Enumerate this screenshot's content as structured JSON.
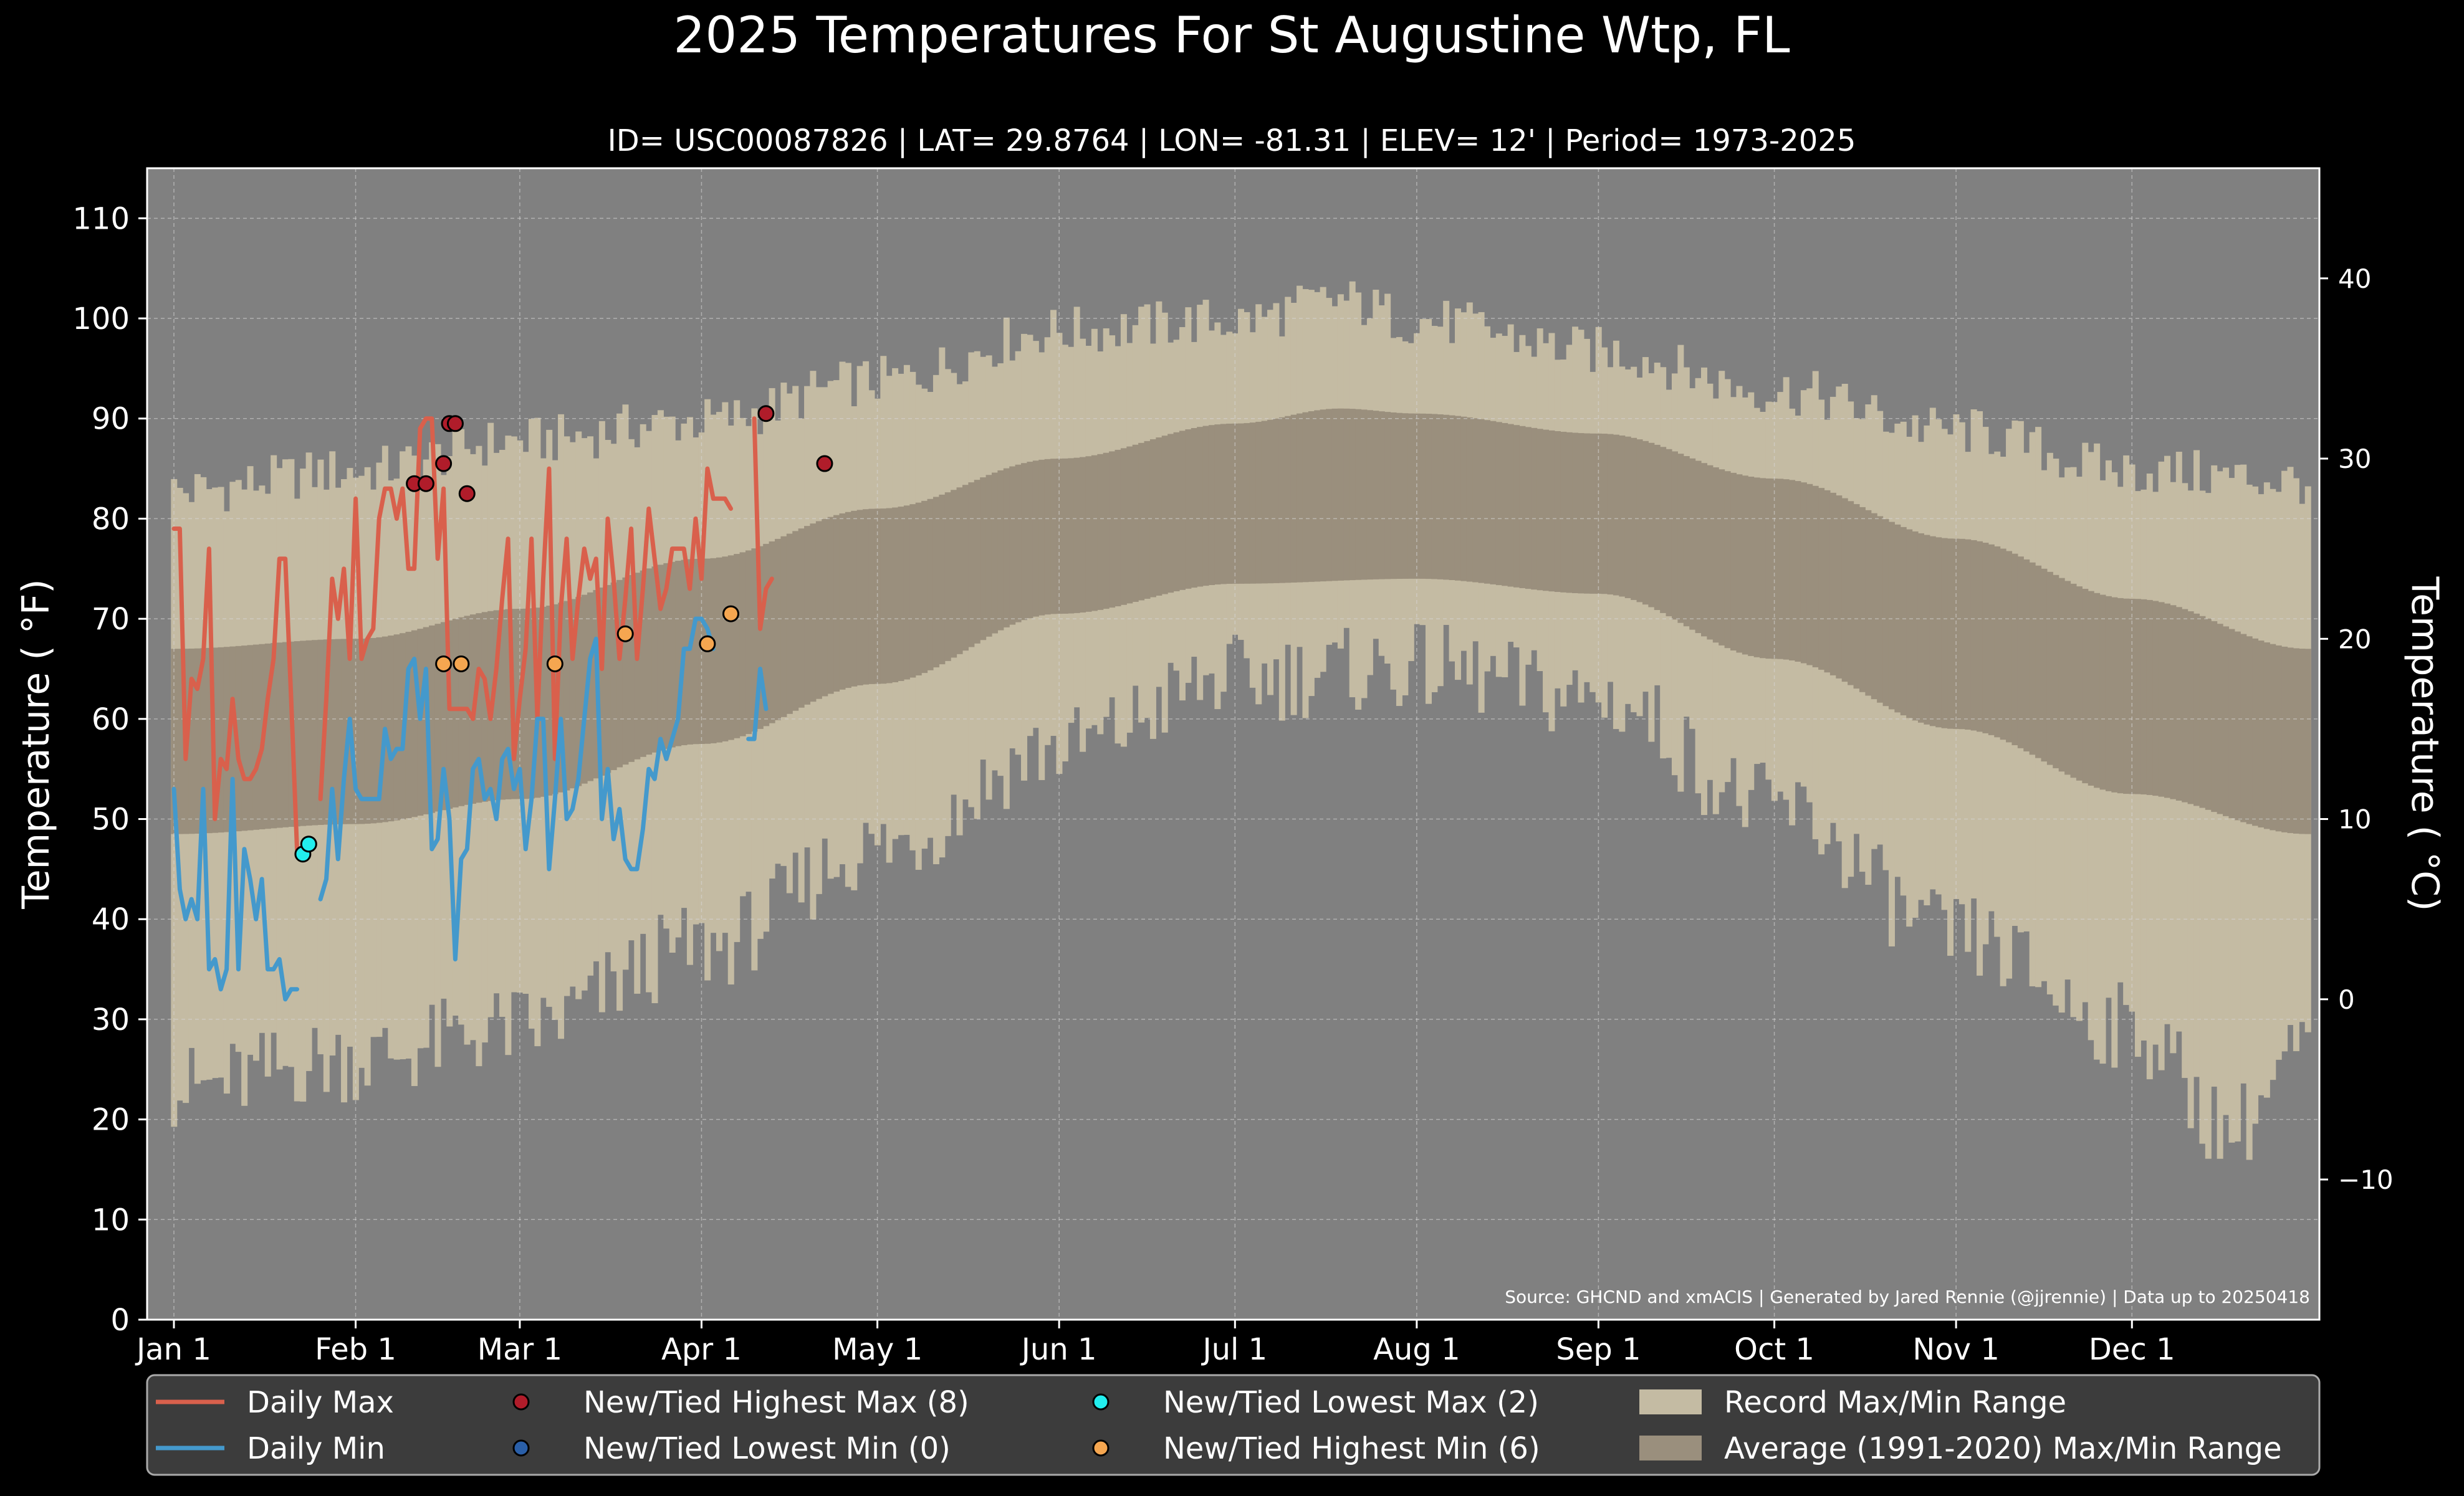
{
  "chart_data": {
    "type": "area",
    "title": "2025 Temperatures For St Augustine Wtp, FL",
    "subtitle": "ID= USC00087826 | LAT= 29.8764 | LON= -81.31 | ELEV= 12' | Period= 1973-2025",
    "ylabel": "Temperature ( °F)",
    "ylabel_right": "Temperature ( °C)",
    "source_note": "Source: GHCND and xmACIS | Generated by Jared Rennie (@jjrennie) | Data up to 20250418",
    "x_unit": "day of year 2025 (1 = Jan 1)",
    "xlim": [
      1,
      365
    ],
    "ylim": [
      0,
      115
    ],
    "ylim_celsius": [
      -17.8,
      46.1
    ],
    "x_ticks": [
      {
        "day": 1,
        "label": "Jan 1"
      },
      {
        "day": 32,
        "label": "Feb 1"
      },
      {
        "day": 60,
        "label": "Mar 1"
      },
      {
        "day": 91,
        "label": "Apr 1"
      },
      {
        "day": 121,
        "label": "May 1"
      },
      {
        "day": 152,
        "label": "Jun 1"
      },
      {
        "day": 182,
        "label": "Jul 1"
      },
      {
        "day": 213,
        "label": "Aug 1"
      },
      {
        "day": 244,
        "label": "Sep 1"
      },
      {
        "day": 274,
        "label": "Oct 1"
      },
      {
        "day": 305,
        "label": "Nov 1"
      },
      {
        "day": 335,
        "label": "Dec 1"
      }
    ],
    "y_ticks": [
      "0",
      "10",
      "20",
      "30",
      "40",
      "50",
      "60",
      "70",
      "80",
      "90",
      "100",
      "110"
    ],
    "y_ticks_right": [
      "−10",
      "0",
      "10",
      "20",
      "30",
      "40"
    ],
    "grid": true,
    "legend_position": "bottom",
    "colors": {
      "background": "#000000",
      "plot_background": "#808080",
      "record_range": "#c4bba3",
      "normal_range": "#9a8f7d",
      "daily_max": "#d9604c",
      "daily_min": "#4499cc",
      "highest_max": "#b01c2a",
      "lowest_min": "#2a5fa8",
      "lowest_max": "#22eeee",
      "highest_min": "#f5a650",
      "legend_background": "#3c3c3c"
    },
    "legend": [
      {
        "key": "daily_max",
        "label": "Daily Max",
        "kind": "line"
      },
      {
        "key": "daily_min",
        "label": "Daily Min",
        "kind": "line"
      },
      {
        "key": "highest_max",
        "label": "New/Tied Highest Max (8)",
        "kind": "dot"
      },
      {
        "key": "lowest_min",
        "label": "New/Tied Lowest Min (0)",
        "kind": "dot"
      },
      {
        "key": "lowest_max",
        "label": "New/Tied Lowest Max (2)",
        "kind": "dot"
      },
      {
        "key": "highest_min",
        "label": "New/Tied Highest Min (6)",
        "kind": "dot"
      },
      {
        "key": "record_range",
        "label": "Record Max/Min Range",
        "kind": "patch"
      },
      {
        "key": "normal_range",
        "label": "Average (1991-2020) Max/Min Range",
        "kind": "patch"
      }
    ],
    "normal_range": {
      "max_anchors": [
        [
          1,
          67
        ],
        [
          32,
          68
        ],
        [
          60,
          71
        ],
        [
          91,
          76
        ],
        [
          121,
          81
        ],
        [
          152,
          86
        ],
        [
          182,
          89.5
        ],
        [
          200,
          91
        ],
        [
          213,
          90.5
        ],
        [
          244,
          88.5
        ],
        [
          274,
          84
        ],
        [
          305,
          78
        ],
        [
          335,
          72
        ],
        [
          365,
          67
        ]
      ],
      "min_anchors": [
        [
          1,
          48.5
        ],
        [
          32,
          49.5
        ],
        [
          60,
          52
        ],
        [
          91,
          57.5
        ],
        [
          121,
          63.5
        ],
        [
          152,
          70.5
        ],
        [
          182,
          73.5
        ],
        [
          213,
          74
        ],
        [
          244,
          72.5
        ],
        [
          274,
          66
        ],
        [
          305,
          59
        ],
        [
          335,
          52.5
        ],
        [
          365,
          48.5
        ]
      ]
    },
    "record_range": {
      "max_anchors": [
        [
          1,
          82
        ],
        [
          32,
          84
        ],
        [
          60,
          87
        ],
        [
          91,
          89
        ],
        [
          121,
          93
        ],
        [
          152,
          98
        ],
        [
          182,
          99
        ],
        [
          200,
          101
        ],
        [
          213,
          99
        ],
        [
          244,
          96
        ],
        [
          274,
          92
        ],
        [
          305,
          88
        ],
        [
          335,
          84
        ],
        [
          365,
          83
        ]
      ],
      "min_anchors": [
        [
          1,
          24
        ],
        [
          32,
          27
        ],
        [
          60,
          30
        ],
        [
          91,
          38
        ],
        [
          121,
          48
        ],
        [
          152,
          58
        ],
        [
          182,
          65
        ],
        [
          213,
          66
        ],
        [
          244,
          63
        ],
        [
          274,
          52
        ],
        [
          305,
          39
        ],
        [
          335,
          30
        ],
        [
          352,
          20
        ],
        [
          365,
          28
        ]
      ]
    },
    "series": [
      {
        "name": "Daily Max",
        "key": "daily_max",
        "x": [
          1,
          2,
          3,
          4,
          5,
          6,
          7,
          8,
          9,
          10,
          11,
          12,
          13,
          14,
          15,
          16,
          17,
          18,
          19,
          20,
          21,
          22,
          23,
          24,
          25,
          26,
          27,
          28,
          29,
          30,
          31,
          32,
          33,
          34,
          35,
          36,
          37,
          38,
          39,
          40,
          41,
          42,
          43,
          44,
          45,
          46,
          47,
          48,
          49,
          50,
          51,
          52,
          53,
          54,
          55,
          56,
          57,
          58,
          59,
          60,
          61,
          62,
          63,
          64,
          65,
          66,
          67,
          68,
          69,
          70,
          71,
          72,
          73,
          74,
          75,
          76,
          77,
          78,
          79,
          80,
          81,
          82,
          83,
          84,
          85,
          86,
          87,
          88,
          89,
          90,
          91,
          92,
          93,
          94,
          95,
          96,
          97,
          98,
          99,
          100,
          101,
          102,
          103,
          104,
          105,
          106,
          107,
          108
        ],
        "values": [
          79,
          79,
          56,
          64,
          63,
          66,
          77,
          50,
          56,
          55,
          62,
          56,
          54,
          54,
          55,
          57,
          62,
          66,
          76,
          76,
          62,
          47,
          46,
          null,
          null,
          52,
          62,
          74,
          70,
          75,
          66,
          82,
          66,
          68,
          69,
          80,
          83,
          83,
          80,
          83,
          75,
          75,
          89,
          90,
          90,
          76,
          83,
          61,
          61,
          61,
          61,
          60,
          65,
          64,
          60,
          65,
          72,
          78,
          56,
          62,
          67,
          78,
          60,
          74,
          85,
          56,
          71,
          78,
          66,
          72,
          77,
          74,
          76,
          65,
          80,
          74,
          66,
          72,
          79,
          66,
          73,
          81,
          76,
          71,
          73,
          77,
          77,
          77,
          73,
          80,
          74,
          85,
          82,
          82,
          82,
          81,
          null,
          null,
          null,
          90,
          69,
          73,
          74,
          null,
          null,
          null,
          null,
          null
        ],
        "label": "Daily Max"
      },
      {
        "name": "Daily Min",
        "key": "daily_min",
        "x": [
          1,
          2,
          3,
          4,
          5,
          6,
          7,
          8,
          9,
          10,
          11,
          12,
          13,
          14,
          15,
          16,
          17,
          18,
          19,
          20,
          21,
          22,
          23,
          24,
          25,
          26,
          27,
          28,
          29,
          30,
          31,
          32,
          33,
          34,
          35,
          36,
          37,
          38,
          39,
          40,
          41,
          42,
          43,
          44,
          45,
          46,
          47,
          48,
          49,
          50,
          51,
          52,
          53,
          54,
          55,
          56,
          57,
          58,
          59,
          60,
          61,
          62,
          63,
          64,
          65,
          66,
          67,
          68,
          69,
          70,
          71,
          72,
          73,
          74,
          75,
          76,
          77,
          78,
          79,
          80,
          81,
          82,
          83,
          84,
          85,
          86,
          87,
          88,
          89,
          90,
          91,
          92,
          93,
          94,
          95,
          96,
          97,
          98,
          99,
          100,
          101,
          102,
          103,
          104,
          105,
          106,
          107,
          108
        ],
        "values": [
          53,
          43,
          40,
          42,
          40,
          53,
          35,
          36,
          33,
          35,
          54,
          35,
          47,
          44,
          40,
          44,
          35,
          35,
          36,
          32,
          33,
          33,
          null,
          null,
          null,
          42,
          44,
          53,
          46,
          54,
          60,
          53,
          52,
          52,
          52,
          52,
          59,
          56,
          57,
          57,
          65,
          66,
          60,
          65,
          47,
          48,
          55,
          50,
          36,
          46,
          47,
          55,
          56,
          52,
          53,
          50,
          56,
          57,
          53,
          55,
          47,
          52,
          60,
          60,
          45,
          52,
          60,
          50,
          51,
          54,
          60,
          66,
          68,
          50,
          55,
          48,
          51,
          46,
          45,
          45,
          49,
          55,
          54,
          58,
          56,
          58,
          60,
          67,
          67,
          70,
          70,
          69,
          67,
          null,
          null,
          null,
          null,
          null,
          58,
          58,
          65,
          61,
          null,
          null,
          null,
          null,
          null,
          null
        ],
        "label": "Daily Min"
      }
    ],
    "markers": {
      "highest_max": [
        [
          42,
          83.5
        ],
        [
          44,
          83.5
        ],
        [
          47,
          85.5
        ],
        [
          48,
          89.5
        ],
        [
          49,
          89.5
        ],
        [
          51,
          82.5
        ],
        [
          102,
          90.5
        ],
        [
          112,
          85.5
        ]
      ],
      "lowest_min": [],
      "lowest_max": [
        [
          23,
          46.5
        ],
        [
          24,
          47.5
        ]
      ],
      "highest_min": [
        [
          47,
          65.5
        ],
        [
          50,
          65.5
        ],
        [
          66,
          65.5
        ],
        [
          78,
          68.5
        ],
        [
          92,
          67.5
        ],
        [
          96,
          70.5
        ]
      ]
    }
  }
}
